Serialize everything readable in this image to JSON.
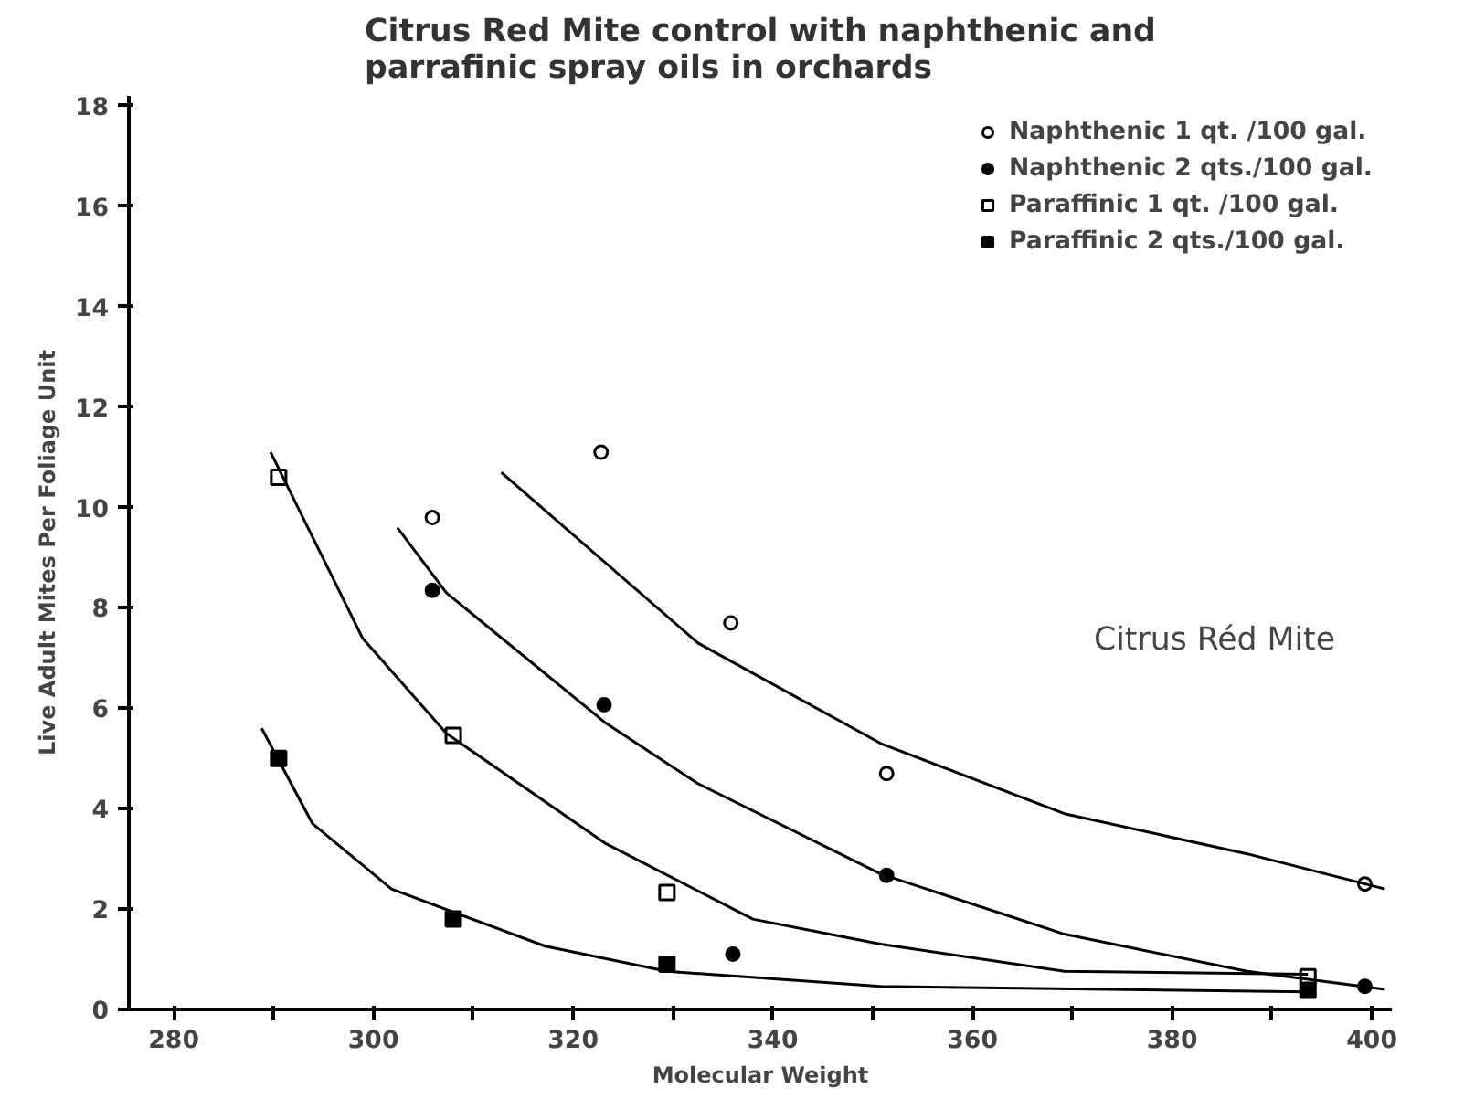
{
  "chart_data": {
    "type": "scatter",
    "title": "Citrus Red Mite control with naphthenic and\nparrafinic spray oils in orchards",
    "xlabel": "Molecular Weight",
    "ylabel": "Live Adult Mites Per Foliage Unit",
    "annotations": [
      "Citrus Réd Mite"
    ],
    "xlim": [
      275.5,
      402
    ],
    "ylim": [
      0,
      18.2
    ],
    "xticks": [
      280,
      {
        "value": 290,
        "label": null
      },
      300,
      {
        "value": 310,
        "label": null
      },
      320,
      {
        "value": 330,
        "label": null
      },
      340,
      {
        "value": 350,
        "label": null
      },
      360,
      {
        "value": 370,
        "label": null
      },
      380,
      {
        "value": 390,
        "label": null
      },
      400
    ],
    "yticks": [
      0,
      2,
      4,
      6,
      8,
      10,
      12,
      14,
      16,
      18
    ],
    "grid": false,
    "legend": "top right",
    "series": [
      {
        "name": "Naphthenic 1 qt. /100 gal.",
        "color": "#000000",
        "marker": "circle",
        "x": [
          305.9,
          322.8,
          335.8,
          351.4,
          399.3
        ],
        "values": [
          9.8,
          11.1,
          7.7,
          4.7,
          2.5
        ]
      },
      {
        "name": "Naphthenic 2 qts./100 gal.",
        "color": "#000000",
        "marker": "circle",
        "x": [
          305.9,
          323.1,
          336,
          351.4,
          399.3
        ],
        "values": [
          8.35,
          6.07,
          1.1,
          2.67,
          0.46
        ]
      },
      {
        "name": "Paraffinic 1 qt. /100 gal.",
        "color": "#000000",
        "marker": "square",
        "x": [
          290.5,
          308,
          329.4,
          393.6
        ],
        "values": [
          10.6,
          5.46,
          2.33,
          0.65
        ]
      },
      {
        "name": "Paraffinic 2 qts./100 gal.",
        "color": "#000000",
        "marker": "square",
        "x": [
          290.5,
          308,
          329.4,
          393.6
        ],
        "values": [
          5.0,
          1.8,
          0.9,
          0.38
        ]
      },
      {
        "type": "line",
        "color": "#000000",
        "marker": "none",
        "x": [
          312.8,
          332.5,
          350.8,
          369.2,
          387.5,
          401.3
        ],
        "values": [
          10.7,
          7.3,
          5.3,
          3.9,
          3.1,
          2.4
        ]
      },
      {
        "type": "line",
        "color": "#000000",
        "marker": "none",
        "x": [
          302.4,
          307.3,
          323.3,
          332.5,
          350.8,
          369.2,
          387.5,
          401.3
        ],
        "values": [
          9.6,
          8.3,
          5.7,
          4.5,
          2.7,
          1.5,
          0.76,
          0.4
        ]
      },
      {
        "type": "line",
        "color": "#000000",
        "marker": "none",
        "x": [
          289.7,
          298.9,
          307.3,
          323.3,
          338,
          350.8,
          369.2,
          393.6
        ],
        "values": [
          11.1,
          7.4,
          5.5,
          3.3,
          1.8,
          1.3,
          0.76,
          0.7
        ]
      },
      {
        "type": "line",
        "color": "#000000",
        "marker": "none",
        "x": [
          288.8,
          293.9,
          301.8,
          317.2,
          329.4,
          350.8,
          393.6
        ],
        "values": [
          5.6,
          3.7,
          2.4,
          1.26,
          0.76,
          0.46,
          0.35
        ]
      }
    ]
  }
}
